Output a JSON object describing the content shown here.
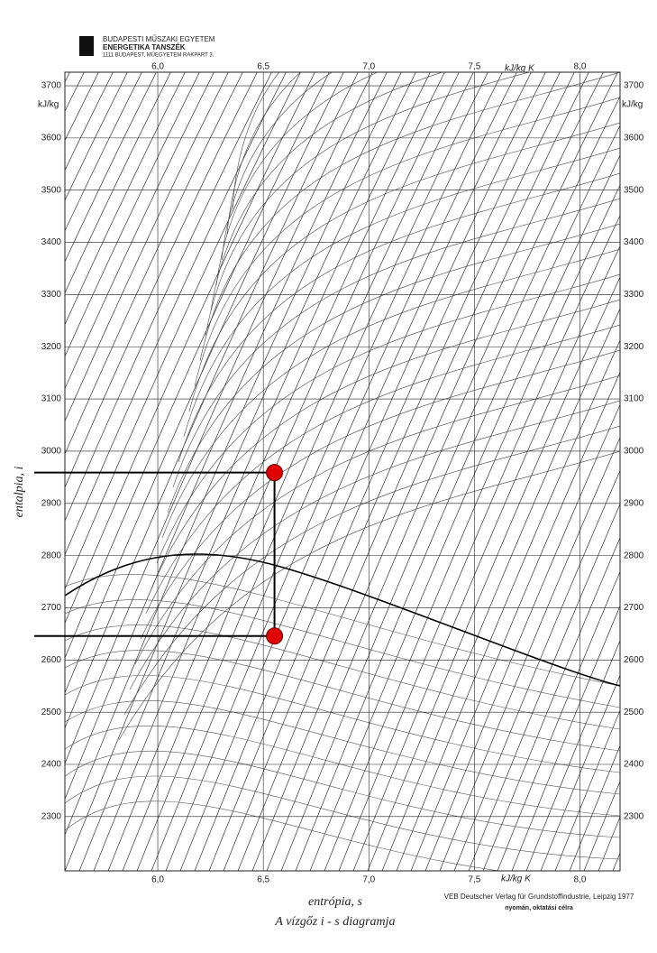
{
  "chart_data": {
    "type": "scatter",
    "header": [
      "BUDAPESTI MŰSZAKI EGYETEM",
      "ENERGETIKA TANSZÉK",
      "1111 BUDAPEST, MŰEGYETEM RAKPART 3."
    ],
    "xlabel": "entrópia, s",
    "ylabel": "entalpia, i",
    "title": "A vízgőz i - s diagramja",
    "x_unit": "kJ/kg K",
    "y_unit": "kJ/kg",
    "publisher": "VEB Deutscher Verlag für Grundstoffindustrie, Leipzig 1977",
    "note": "nyomán, oktatási célra",
    "x": [
      6.553,
      6.553
    ],
    "values": [
      2959,
      2646
    ],
    "color": "#e00000",
    "xlim": [
      5.56,
      8.19
    ],
    "ylim": [
      2196,
      3726
    ],
    "xticks": [
      {
        "value": 6.0,
        "label": "6,0"
      },
      {
        "value": 6.5,
        "label": "6,5"
      },
      {
        "value": 7.0,
        "label": "7,0"
      },
      {
        "value": 7.5,
        "label": "7,5"
      },
      {
        "value": 8.0,
        "label": "8,0"
      }
    ],
    "yticks": [
      2300,
      2400,
      2500,
      2600,
      2700,
      2800,
      2900,
      3000,
      3100,
      3200,
      3300,
      3400,
      3500,
      3600,
      3700
    ],
    "grid": true
  }
}
